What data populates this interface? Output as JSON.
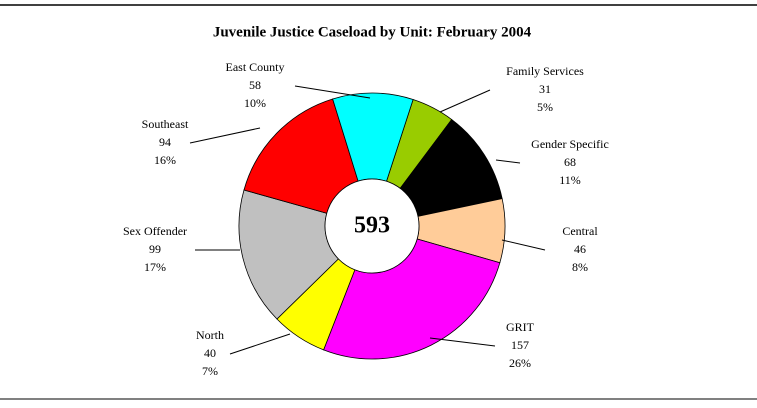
{
  "chart_data": {
    "type": "doughnut",
    "title": "Juvenile Justice Caseload by Unit: February 2004",
    "categories": [
      "Family Services",
      "Gender Specific",
      "Central",
      "GRIT",
      "North",
      "Sex Offender",
      "Southeast",
      "East County"
    ],
    "values": [
      31,
      68,
      46,
      157,
      40,
      99,
      94,
      58
    ],
    "percent_labels": [
      "5%",
      "11%",
      "8%",
      "26%",
      "7%",
      "17%",
      "16%",
      "10%"
    ],
    "colors": [
      "#99cc00",
      "#000000",
      "#ffcc99",
      "#ff00ff",
      "#ffff00",
      "#c0c0c0",
      "#ff0000",
      "#00ffff"
    ],
    "total": 593
  }
}
